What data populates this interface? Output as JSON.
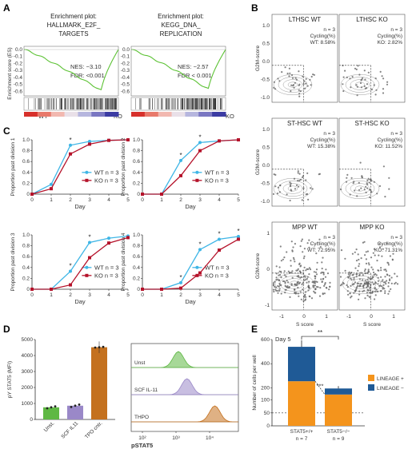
{
  "panel_labels": [
    "A",
    "B",
    "C",
    "D",
    "E"
  ],
  "colors": {
    "wt": "#3fb6e6",
    "ko": "#b5122a",
    "gsea_line": "#5cc234",
    "unst": "#5fb844",
    "scf": "#9a88c8",
    "tpo": "#c4711f",
    "lin_pos": "#f4941c",
    "lin_neg": "#1f5a96"
  },
  "panel_a": {
    "plots": [
      {
        "title_lines": [
          "Enrichment plot:",
          "HALLMARK_E2F_",
          "TARGETS"
        ],
        "nes": "NES: −3.10",
        "fdr": "FDR: <0.001",
        "es_min": -0.59,
        "es_min_pos": 0.82
      },
      {
        "title_lines": [
          "Enrichment plot:",
          "KEGG_DNA_",
          "REPLICATION"
        ],
        "nes": "NES: −2.57",
        "fdr": "FDR < 0.001",
        "es_min": -0.57,
        "es_min_pos": 0.82
      }
    ],
    "ylabel": "Enrichment score (ES)",
    "yticks": [
      "0.0",
      "-0.1",
      "-0.2",
      "-0.3",
      "-0.4",
      "-0.5",
      "-0.6"
    ],
    "left_group": "WT",
    "right_group": "KO"
  },
  "panel_b": {
    "ylabel": "G2M-score",
    "xlabel": "S score",
    "panels": [
      {
        "wt_title": "LTHSC WT",
        "ko_title": "LTHSC KO",
        "n": "n = 3",
        "cycling": "Cycling(%)",
        "wt_pct": "WT: 8.58%",
        "ko_pct": "KO: 2.82%",
        "yticks": [
          "1.0",
          "0.5",
          "0.0",
          "-0.5",
          "-1.0"
        ]
      },
      {
        "wt_title": "ST-HSC WT",
        "ko_title": "ST-HSC KO",
        "n": "n = 3",
        "cycling": "Cycling(%)",
        "wt_pct": "WT: 15.38%",
        "ko_pct": "KO: 11.52%",
        "yticks": [
          "1.0",
          "0.5",
          "0.0",
          "-0.5",
          "-1.0"
        ]
      },
      {
        "wt_title": "MPP WT",
        "ko_title": "MPP KO",
        "n": "n = 3",
        "cycling": "Cycling(%)",
        "wt_pct": "WT: 72.95%",
        "ko_pct": "KO: 71.31%",
        "yticks": [
          "1",
          "0",
          "-1"
        ],
        "xticks": [
          "-1",
          "0",
          "1"
        ]
      }
    ]
  },
  "chart_data": [
    {
      "type": "line",
      "panel": "C",
      "xlabel": "Day",
      "x": [
        0,
        1,
        2,
        3,
        4,
        5
      ],
      "ylim": [
        0,
        1
      ],
      "yticks": [
        "0",
        "0.2",
        "0.4",
        "0.6",
        "0.8",
        "1.0"
      ],
      "plots": [
        {
          "ylabel": "Proportion past division 1",
          "stars": [
            "*"
          ],
          "star_days": [
            2
          ],
          "series": [
            {
              "name": "WT n = 3",
              "values": [
                0.0,
                0.18,
                0.9,
                0.97,
                0.99,
                1.0
              ]
            },
            {
              "name": "KO n = 3",
              "values": [
                0.0,
                0.1,
                0.74,
                0.92,
                0.99,
                1.0
              ]
            }
          ]
        },
        {
          "ylabel": "Proportion past division 2",
          "stars": [
            "*",
            "*"
          ],
          "star_days": [
            2,
            3
          ],
          "series": [
            {
              "name": "WT n = 3",
              "values": [
                0.0,
                0.0,
                0.62,
                0.95,
                0.98,
                1.0
              ]
            },
            {
              "name": "KO n = 3",
              "values": [
                0.0,
                0.0,
                0.34,
                0.8,
                0.98,
                1.0
              ]
            }
          ]
        },
        {
          "ylabel": "Proportion past division 3",
          "stars": [
            "*",
            "*"
          ],
          "star_days": [
            2,
            3
          ],
          "series": [
            {
              "name": "WT n = 3",
              "values": [
                0.0,
                0.0,
                0.33,
                0.86,
                0.94,
                0.98
              ]
            },
            {
              "name": "KO n = 3",
              "values": [
                0.0,
                0.0,
                0.08,
                0.58,
                0.85,
                0.95
              ]
            }
          ]
        },
        {
          "ylabel": "Proportion past division 4",
          "stars": [
            "*",
            "*",
            "*",
            "*"
          ],
          "star_days": [
            2,
            3,
            4,
            5
          ],
          "series": [
            {
              "name": "WT n = 3",
              "values": [
                0.0,
                0.0,
                0.12,
                0.73,
                0.92,
                0.97
              ]
            },
            {
              "name": "KO n = 3",
              "values": [
                0.0,
                0.0,
                0.02,
                0.3,
                0.72,
                0.92
              ]
            }
          ]
        }
      ]
    },
    {
      "type": "bar",
      "panel": "D",
      "ylabel": "pY STAT5 (MFI)",
      "ylim": [
        0,
        5000
      ],
      "yticks": [
        "0",
        "1000",
        "2000",
        "3000",
        "4000",
        "5000"
      ],
      "categories": [
        "Unst.",
        "SCF IL11",
        "TPO cntr."
      ],
      "values": [
        760,
        860,
        4520
      ],
      "points": [
        [
          700,
          760,
          820
        ],
        [
          780,
          860,
          930
        ],
        [
          4500,
          4520,
          4540
        ]
      ]
    },
    {
      "type": "bar",
      "panel": "E",
      "title": "Day 5",
      "ylabel": "Number of cells per well",
      "yticks": [
        "0",
        "50",
        "100",
        "200",
        "400",
        "600"
      ],
      "categories": [
        "STAT5+/+",
        "STAT5−/−"
      ],
      "n_labels": [
        "n = 7",
        "n = 9"
      ],
      "series": [
        {
          "name": "LINEAGE +",
          "values": [
            255,
            145
          ]
        },
        {
          "name": "LINEAGE −",
          "values": [
            285,
            50
          ]
        }
      ],
      "totals": [
        540,
        195
      ],
      "sig_top": "**",
      "sig_mid": "***"
    }
  ],
  "panel_d_flow": {
    "rows": [
      "Unst",
      "SCF IL-11",
      "THPO"
    ],
    "xlabel": "pSTAT5",
    "xticks": [
      "10²",
      "10³",
      "10⁴"
    ]
  }
}
